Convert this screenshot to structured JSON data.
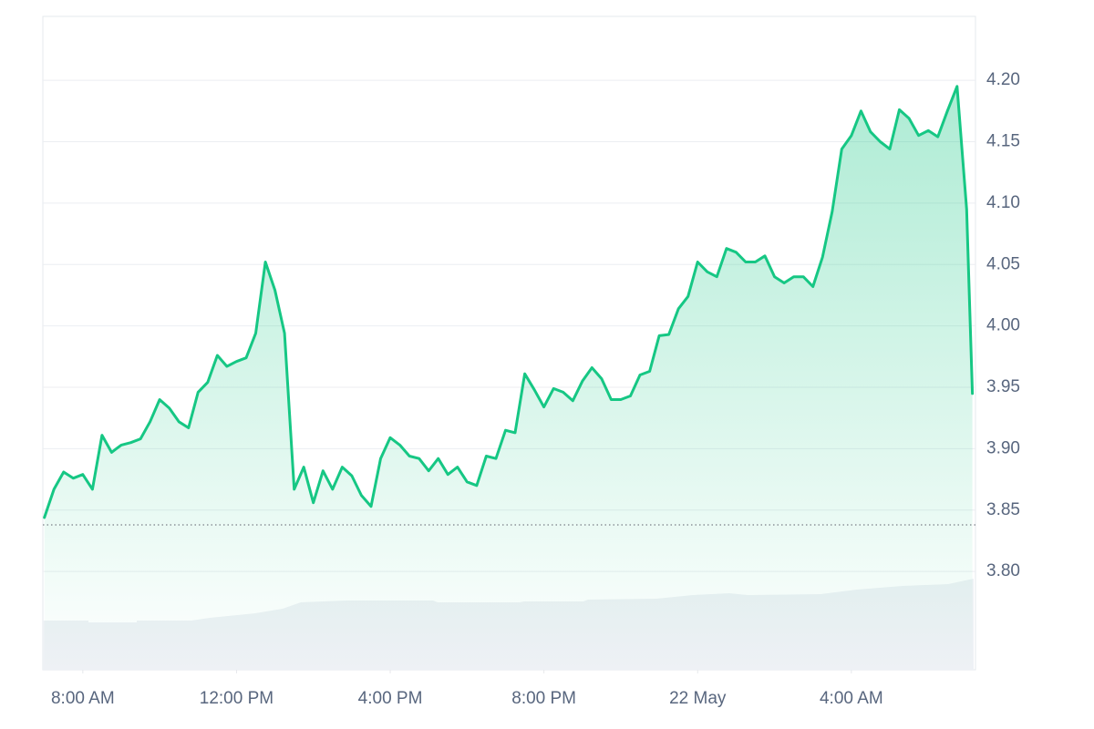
{
  "chart_data": {
    "type": "area-line",
    "color": "#16c784",
    "grid": true,
    "xlim": [
      6.96,
      31.23
    ],
    "ylim": [
      3.72,
      4.252
    ],
    "baseline": 3.838,
    "xticks": [
      {
        "value": 8,
        "label": "8:00 AM"
      },
      {
        "value": 12,
        "label": "12:00 PM"
      },
      {
        "value": 16,
        "label": "4:00 PM"
      },
      {
        "value": 20,
        "label": "8:00 PM"
      },
      {
        "value": 24,
        "label": "22 May"
      },
      {
        "value": 28,
        "label": "4:00 AM"
      }
    ],
    "yticks": [
      {
        "value": 3.8,
        "label": "3.80"
      },
      3.85,
      {
        "value": 3.9,
        "label": "3.90"
      },
      3.95,
      {
        "value": 4.0,
        "label": "4.00"
      },
      4.05,
      {
        "value": 4.1,
        "label": "4.10"
      },
      4.15,
      {
        "value": 4.2,
        "label": "4.20"
      }
    ],
    "x": [
      7,
      7.25,
      7.5,
      7.75,
      8,
      8.25,
      8.5,
      8.75,
      9,
      9.25,
      9.5,
      9.75,
      10,
      10.25,
      10.5,
      10.75,
      11,
      11.25,
      11.5,
      11.75,
      12,
      12.25,
      12.5,
      12.75,
      13,
      13.25,
      13.5,
      13.75,
      14,
      14.25,
      14.5,
      14.75,
      15,
      15.25,
      15.5,
      15.75,
      16,
      16.25,
      16.5,
      16.75,
      17,
      17.25,
      17.5,
      17.75,
      18,
      18.25,
      18.5,
      18.75,
      19,
      19.25,
      19.5,
      19.75,
      20,
      20.25,
      20.5,
      20.75,
      21,
      21.25,
      21.5,
      21.75,
      22,
      22.25,
      22.5,
      22.75,
      23,
      23.25,
      23.5,
      23.75,
      24,
      24.25,
      24.5,
      24.75,
      25,
      25.25,
      25.5,
      25.75,
      26,
      26.25,
      26.5,
      26.75,
      27,
      27.25,
      27.5,
      27.75,
      28,
      28.25,
      28.5,
      28.75,
      29,
      29.25,
      29.5,
      29.75,
      30,
      30.25,
      30.5,
      30.75,
      31,
      31.15
    ],
    "values": [
      3.844,
      3.867,
      3.881,
      3.876,
      3.879,
      3.867,
      3.911,
      3.897,
      3.903,
      3.905,
      3.908,
      3.922,
      3.94,
      3.933,
      3.922,
      3.917,
      3.946,
      3.954,
      3.976,
      3.967,
      3.971,
      3.974,
      3.994,
      4.052,
      4.029,
      3.994,
      3.867,
      3.885,
      3.856,
      3.882,
      3.867,
      3.885,
      3.878,
      3.862,
      3.853,
      3.892,
      3.909,
      3.903,
      3.894,
      3.892,
      3.882,
      3.892,
      3.879,
      3.885,
      3.873,
      3.87,
      3.894,
      3.892,
      3.915,
      3.913,
      3.961,
      3.948,
      3.934,
      3.949,
      3.946,
      3.939,
      3.955,
      3.966,
      3.957,
      3.94,
      3.94,
      3.943,
      3.96,
      3.963,
      3.992,
      3.993,
      4.014,
      4.024,
      4.052,
      4.044,
      4.04,
      4.063,
      4.06,
      4.052,
      4.052,
      4.057,
      4.04,
      4.035,
      4.04,
      4.04,
      4.032,
      4.056,
      4.093,
      4.144,
      4.155,
      4.175,
      4.158,
      4.15,
      4.144,
      4.176,
      4.169,
      4.155,
      4.159,
      4.154,
      4.175,
      4.195,
      4.095,
      3.945
    ]
  }
}
